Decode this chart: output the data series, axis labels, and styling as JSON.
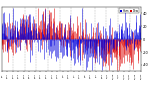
{
  "n_days": 365,
  "blue_color": "#0000dd",
  "red_color": "#dd0000",
  "bg_color": "#ffffff",
  "grid_color": "#888888",
  "ylim": [
    -50,
    50
  ],
  "n_grid_lines": 11,
  "seed": 42,
  "legend_blue_label": "Hum",
  "legend_red_label": "Dew",
  "figsize": [
    1.6,
    0.87
  ],
  "dpi": 100
}
